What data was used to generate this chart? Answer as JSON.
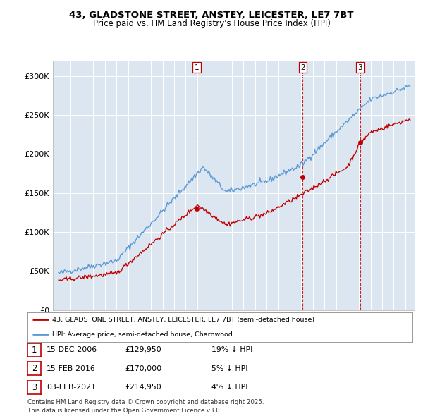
{
  "title_line1": "43, GLADSTONE STREET, ANSTEY, LEICESTER, LE7 7BT",
  "title_line2": "Price paid vs. HM Land Registry's House Price Index (HPI)",
  "background_color": "#dce6f1",
  "sale_prices": [
    129950,
    170000,
    214950
  ],
  "sale_year_nums": [
    2006.958,
    2016.125,
    2021.092
  ],
  "sale_labels": [
    "1",
    "2",
    "3"
  ],
  "legend_sale": "43, GLADSTONE STREET, ANSTEY, LEICESTER, LE7 7BT (semi-detached house)",
  "legend_hpi": "HPI: Average price, semi-detached house, Charnwood",
  "table_rows": [
    [
      "1",
      "15-DEC-2006",
      "£129,950",
      "19% ↓ HPI"
    ],
    [
      "2",
      "15-FEB-2016",
      "£170,000",
      "5% ↓ HPI"
    ],
    [
      "3",
      "03-FEB-2021",
      "£214,950",
      "4% ↓ HPI"
    ]
  ],
  "footer": "Contains HM Land Registry data © Crown copyright and database right 2025.\nThis data is licensed under the Open Government Licence v3.0.",
  "hpi_color": "#5b9bd5",
  "sale_color": "#c00000",
  "vline_color": "#c00000",
  "ylim": [
    0,
    320000
  ],
  "yticks": [
    0,
    50000,
    100000,
    150000,
    200000,
    250000,
    300000
  ],
  "xlim_start": 1994.5,
  "xlim_end": 2025.8
}
